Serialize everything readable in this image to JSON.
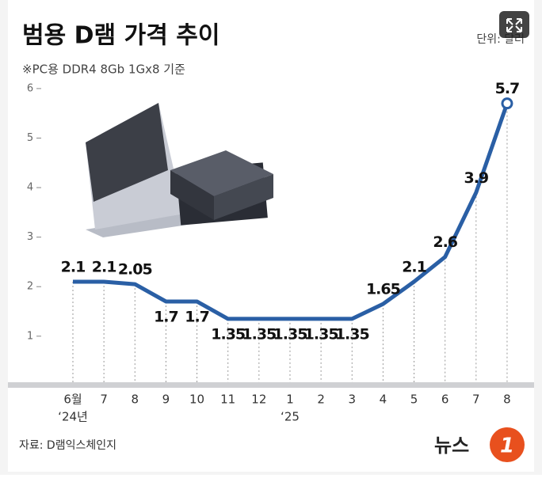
{
  "chart_data": {
    "type": "line",
    "title": "범용 D램 가격 추이",
    "subtitle": "※PC용 DDR4 8Gb 1Gx8 기준",
    "unit": "단위: 달러",
    "source": "자료: D램익스체인지",
    "logo": {
      "text": "뉴스",
      "mark": "1"
    },
    "categories": [
      "6월",
      "7",
      "8",
      "9",
      "10",
      "11",
      "12",
      "1",
      "2",
      "3",
      "4",
      "5",
      "6",
      "7",
      "8"
    ],
    "year_labels": [
      "‘24년",
      null,
      null,
      null,
      null,
      null,
      null,
      "‘25",
      null,
      null,
      null,
      null,
      null,
      null,
      null
    ],
    "values": [
      2.1,
      2.1,
      2.05,
      1.7,
      1.7,
      1.35,
      1.35,
      1.35,
      1.35,
      1.35,
      1.65,
      2.1,
      2.6,
      3.9,
      5.7
    ],
    "color": "#2a5fa5",
    "ylim": [
      0.07,
      6.27
    ],
    "yticks": [
      1,
      2,
      3,
      4,
      5,
      6
    ]
  }
}
